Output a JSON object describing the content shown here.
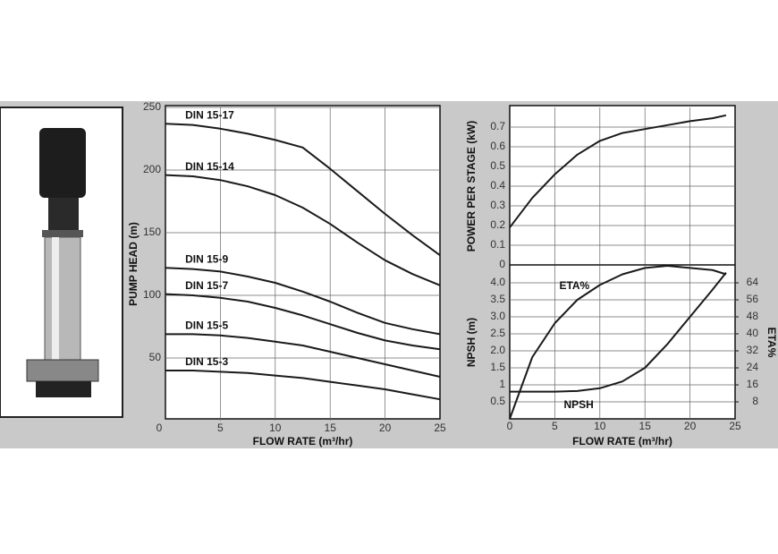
{
  "chart_data": [
    {
      "type": "line",
      "xlabel": "FLOW RATE (m³/hr)",
      "ylabel": "PUMP HEAD (m)",
      "x": [
        0,
        2.5,
        5,
        7.5,
        10,
        12.5,
        15,
        17.5,
        20,
        22.5,
        25
      ],
      "series": [
        {
          "name": "DIN 15-17",
          "color": "#1a1a1a",
          "values": [
            237,
            236,
            233,
            229,
            224,
            218,
            201,
            183,
            165,
            148,
            132
          ]
        },
        {
          "name": "DIN 15-14",
          "color": "#1a1a1a",
          "values": [
            196,
            195,
            192,
            187,
            180,
            170,
            157,
            142,
            128,
            117,
            108
          ]
        },
        {
          "name": "DIN 15-9",
          "color": "#1a1a1a",
          "values": [
            122,
            121,
            119,
            115,
            110,
            103,
            95,
            86,
            78,
            73,
            69
          ]
        },
        {
          "name": "DIN 15-7",
          "color": "#1a1a1a",
          "values": [
            101,
            100,
            98,
            95,
            90,
            84,
            77,
            70,
            64,
            60,
            57
          ]
        },
        {
          "name": "DIN 15-5",
          "color": "#1a1a1a",
          "values": [
            69,
            69,
            68,
            66,
            63,
            60,
            55,
            50,
            45,
            40,
            35
          ]
        },
        {
          "name": "DIN 15-3",
          "color": "#1a1a1a",
          "values": [
            40,
            40,
            39,
            38,
            36,
            34,
            31,
            28,
            25,
            21,
            17
          ]
        }
      ],
      "xlim": [
        0,
        25
      ],
      "ylim": [
        0,
        250
      ],
      "xticks": [
        0,
        5,
        10,
        15,
        20,
        25
      ],
      "yticks": [
        50,
        100,
        150,
        200,
        250
      ],
      "grid": true
    },
    {
      "type": "line",
      "ylabel": "POWER PER STAGE (kW)",
      "x": [
        0,
        2.5,
        5,
        7.5,
        10,
        12.5,
        15,
        17.5,
        20,
        22.5,
        24
      ],
      "series": [
        {
          "color": "#1a1a1a",
          "values": [
            0.19,
            0.34,
            0.46,
            0.56,
            0.63,
            0.67,
            0.69,
            0.71,
            0.73,
            0.745,
            0.76
          ]
        }
      ],
      "xlim": [
        0,
        25
      ],
      "ylim": [
        0,
        0.8
      ],
      "yticks": [
        0,
        0.1,
        0.2,
        0.3,
        0.4,
        0.5,
        0.6,
        0.7
      ],
      "grid": true
    },
    {
      "type": "line",
      "xlabel": "FLOW RATE (m³/hr)",
      "ylabel": "NPSH (m)",
      "y2label": "ETA%",
      "x": [
        0,
        2.5,
        5,
        7.5,
        10,
        12.5,
        15,
        17.5,
        20,
        22.5,
        24
      ],
      "series": [
        {
          "name": "ETA%",
          "color": "#1a1a1a",
          "axis": "y2",
          "values": [
            0,
            29,
            45,
            56,
            63,
            68,
            71,
            72,
            71,
            70,
            68
          ]
        },
        {
          "name": "NPSH",
          "color": "#1a1a1a",
          "values": [
            0.8,
            0.8,
            0.8,
            0.82,
            0.9,
            1.1,
            1.5,
            2.2,
            3,
            3.8,
            4.3
          ]
        }
      ],
      "xlim": [
        0,
        25
      ],
      "ylim": [
        0,
        4.5
      ],
      "y2lim": [
        0,
        72
      ],
      "xticks": [
        0,
        5,
        10,
        15,
        20,
        25
      ],
      "yticks": [
        0.5,
        1,
        1.5,
        {
          "value": 2,
          "label": "2.0"
        },
        2.5,
        {
          "value": 3,
          "label": "3.0"
        },
        3.5,
        {
          "value": 4,
          "label": "4.0"
        }
      ],
      "y2ticks": [
        8,
        16,
        24,
        32,
        40,
        48,
        56,
        64
      ],
      "grid": true
    }
  ]
}
